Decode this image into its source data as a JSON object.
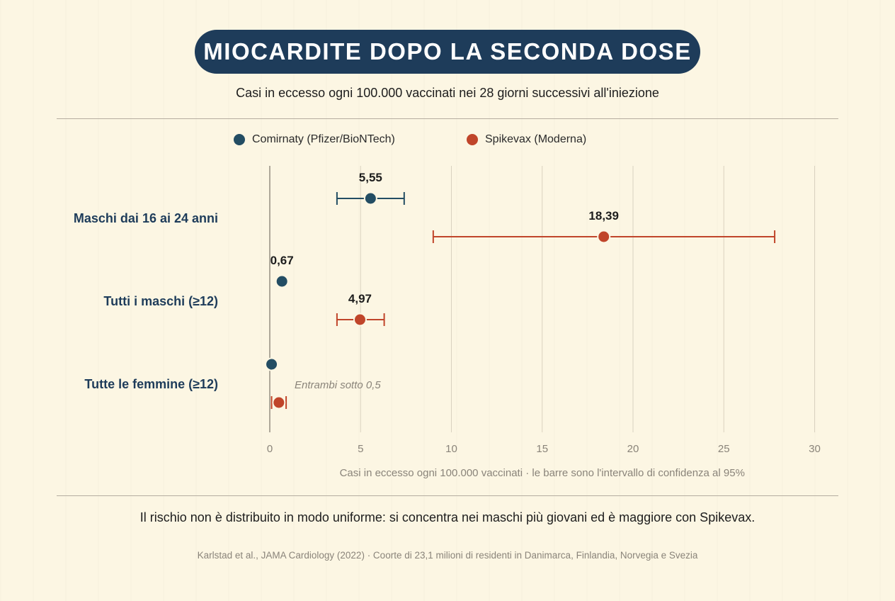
{
  "title": "MIOCARDITE DOPO LA SECONDA DOSE",
  "subtitle": "Casi in eccesso ogni 100.000 vaccinati nei 28 giorni successivi all'iniezione",
  "conclusion": "Il rischio non è distribuito in modo uniforme: si concentra nei maschi più giovani ed è maggiore con Spikevax.",
  "source": "Karlstad et al., JAMA Cardiology (2022) · Coorte di 23,1 milioni di residenti in Danimarca, Finlandia, Norvegia e Svezia",
  "colors": {
    "pfizer": "#234d63",
    "moderna": "#c0452a",
    "title_bg": "#1e3c5a",
    "label": "#1e3c5a",
    "grid": "#d9d2c0",
    "axis": "#8e887c"
  },
  "chart_data": {
    "type": "scatter",
    "subtype": "dot-with-error-bars",
    "xlabel": "Casi in eccesso ogni 100.000 vaccinati · le barre sono l'intervallo di confidenza al 95%",
    "xlim": [
      0,
      30
    ],
    "xticks": [
      0,
      5,
      10,
      15,
      20,
      25,
      30
    ],
    "grid": "vertical",
    "legend_position": "top-center",
    "categories": [
      "Maschi dai 16 ai 24 anni",
      "Tutti i maschi (≥12)",
      "Tutte le femmine (≥12)"
    ],
    "series": [
      {
        "name": "Comirnaty (Pfizer/BioNTech)",
        "color": "#234d63",
        "points": [
          {
            "category": "Maschi dai 16 ai 24 anni",
            "value": 5.55,
            "ci": [
              3.7,
              7.4
            ],
            "label": "5,55"
          },
          {
            "category": "Tutti i maschi (≥12)",
            "value": 0.67,
            "ci": null,
            "label": "0,67"
          },
          {
            "category": "Tutte le femmine (≥12)",
            "value": 0.1,
            "ci": null,
            "label": ""
          }
        ]
      },
      {
        "name": "Spikevax (Moderna)",
        "color": "#c0452a",
        "points": [
          {
            "category": "Maschi dai 16 ai 24 anni",
            "value": 18.39,
            "ci": [
              9.0,
              27.8
            ],
            "label": "18,39"
          },
          {
            "category": "Tutti i maschi (≥12)",
            "value": 4.97,
            "ci": [
              3.7,
              6.3
            ],
            "label": "4,97"
          },
          {
            "category": "Tutte le femmine (≥12)",
            "value": 0.5,
            "ci": [
              0.1,
              0.9
            ],
            "label": ""
          }
        ]
      }
    ],
    "annotations": [
      {
        "category": "Tutte le femmine (≥12)",
        "text": "Entrambi sotto 0,5"
      }
    ]
  }
}
